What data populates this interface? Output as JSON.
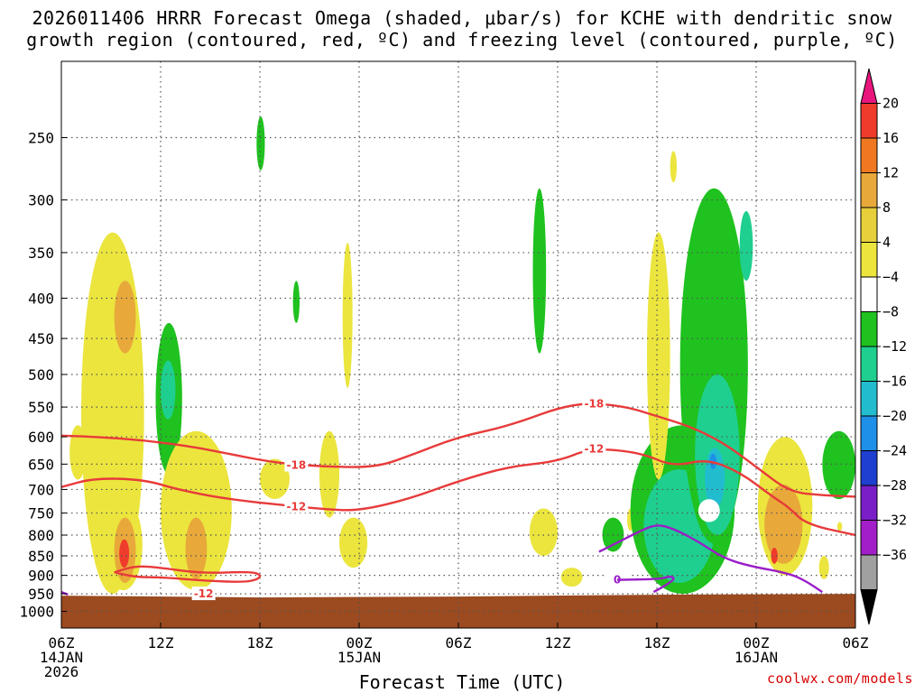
{
  "title": {
    "line1": "2026011406 HRRR Forecast Omega (shaded, μbar/s) for KCHE with dendritic snow",
    "line2": "growth region (contoured, red, ºC) and freezing level (contoured, purple, ºC)"
  },
  "xlabel": "Forecast Time (UTC)",
  "credit": "coolwx.com/models",
  "chart_data": {
    "type": "heatmap",
    "title": "2026011406 HRRR Forecast Omega (shaded, μbar/s) for KCHE with dendritic snow growth region (contoured, red, ºC) and freezing level (contoured, purple, ºC)",
    "xlabel": "Forecast Time (UTC)",
    "ylabel": "",
    "x_range_hours": [
      0,
      48
    ],
    "x_ticks": [
      {
        "hour": 0,
        "l1": "06Z",
        "l2": "14JAN",
        "l3": "2026"
      },
      {
        "hour": 6,
        "l1": "12Z",
        "l2": "",
        "l3": ""
      },
      {
        "hour": 12,
        "l1": "18Z",
        "l2": "",
        "l3": ""
      },
      {
        "hour": 18,
        "l1": "00Z",
        "l2": "15JAN",
        "l3": ""
      },
      {
        "hour": 24,
        "l1": "06Z",
        "l2": "",
        "l3": ""
      },
      {
        "hour": 30,
        "l1": "12Z",
        "l2": "",
        "l3": ""
      },
      {
        "hour": 36,
        "l1": "18Z",
        "l2": "",
        "l3": ""
      },
      {
        "hour": 42,
        "l1": "00Z",
        "l2": "16JAN",
        "l3": ""
      },
      {
        "hour": 48,
        "l1": "06Z",
        "l2": "",
        "l3": ""
      }
    ],
    "y_axis": "pressure (hPa), log scale, inverted",
    "y_range": [
      1050,
      200
    ],
    "y_ticks": [
      250,
      300,
      350,
      400,
      450,
      500,
      550,
      600,
      650,
      700,
      750,
      800,
      850,
      900,
      950,
      1000
    ],
    "grid": true,
    "colorbar": {
      "units": "μbar/s",
      "levels": [
        20,
        16,
        12,
        8,
        4,
        -4,
        -8,
        -12,
        -16,
        -20,
        -24,
        -28,
        -32,
        -36
      ],
      "colors": [
        "#e8157d",
        "#ef3b2c",
        "#f07820",
        "#e8a93a",
        "#e6cf3a",
        "#ebe53e",
        "#ffffff",
        "#1fc21f",
        "#1fcf8f",
        "#22bccf",
        "#1e90e8",
        "#1e3fd0",
        "#7a1ec8",
        "#a21ec8",
        "#a0a0a0",
        "#000000"
      ],
      "placement": "right"
    },
    "terrain_color": "#9c4a20",
    "terrain_pressure_hpa": 955,
    "omega_regions": [
      {
        "color": "#ebe53e",
        "x": [
          1.2,
          5.0
        ],
        "p": [
          330,
          950
        ]
      },
      {
        "color": "#e8a93a",
        "x": [
          3.2,
          4.5
        ],
        "p": [
          380,
          470
        ]
      },
      {
        "color": "#ebe53e",
        "x": [
          0.5,
          1.5
        ],
        "p": [
          580,
          680
        ]
      },
      {
        "color": "#ebe53e",
        "x": [
          2.6,
          4.9
        ],
        "p": [
          720,
          940
        ]
      },
      {
        "color": "#e8a93a",
        "x": [
          3.2,
          4.5
        ],
        "p": [
          760,
          920
        ]
      },
      {
        "color": "#ef3b2c",
        "x": [
          3.5,
          4.1
        ],
        "p": [
          810,
          880
        ]
      },
      {
        "color": "#1fc21f",
        "x": [
          5.7,
          7.3
        ],
        "p": [
          430,
          670
        ]
      },
      {
        "color": "#1fcf8f",
        "x": [
          6.0,
          6.9
        ],
        "p": [
          480,
          570
        ]
      },
      {
        "color": "#ebe53e",
        "x": [
          6.0,
          10.3
        ],
        "p": [
          590,
          940
        ]
      },
      {
        "color": "#e8a93a",
        "x": [
          7.5,
          8.8
        ],
        "p": [
          760,
          910
        ]
      },
      {
        "color": "#1fc21f",
        "x": [
          11.8,
          12.3
        ],
        "p": [
          235,
          275
        ]
      },
      {
        "color": "#ebe53e",
        "x": [
          12.0,
          13.8
        ],
        "p": [
          640,
          720
        ]
      },
      {
        "color": "#1fc21f",
        "x": [
          14.0,
          14.4
        ],
        "p": [
          380,
          430
        ]
      },
      {
        "color": "#ebe53e",
        "x": [
          15.6,
          16.8
        ],
        "p": [
          590,
          760
        ]
      },
      {
        "color": "#ebe53e",
        "x": [
          17.0,
          17.6
        ],
        "p": [
          340,
          520
        ]
      },
      {
        "color": "#ebe53e",
        "x": [
          16.8,
          18.5
        ],
        "p": [
          760,
          880
        ]
      },
      {
        "color": "#1fc21f",
        "x": [
          28.5,
          29.3
        ],
        "p": [
          290,
          470
        ]
      },
      {
        "color": "#ebe53e",
        "x": [
          28.3,
          30.0
        ],
        "p": [
          740,
          850
        ]
      },
      {
        "color": "#ebe53e",
        "x": [
          30.2,
          31.5
        ],
        "p": [
          880,
          930
        ]
      },
      {
        "color": "#1fc21f",
        "x": [
          32.7,
          34.0
        ],
        "p": [
          760,
          840
        ]
      },
      {
        "color": "#ebe53e",
        "x": [
          34.2,
          34.6
        ],
        "p": [
          740,
          790
        ]
      },
      {
        "color": "#1fc21f",
        "x": [
          34.4,
          40.7
        ],
        "p": [
          580,
          950
        ]
      },
      {
        "color": "#1fcf8f",
        "x": [
          35.2,
          39.5
        ],
        "p": [
          660,
          920
        ]
      },
      {
        "color": "#ebe53e",
        "x": [
          35.4,
          36.8
        ],
        "p": [
          330,
          680
        ]
      },
      {
        "color": "#ebe53e",
        "x": [
          36.8,
          37.2
        ],
        "p": [
          260,
          285
        ]
      },
      {
        "color": "#1fc21f",
        "x": [
          37.4,
          41.5
        ],
        "p": [
          290,
          820
        ]
      },
      {
        "color": "#1fcf8f",
        "x": [
          38.3,
          41.0
        ],
        "p": [
          500,
          800
        ]
      },
      {
        "color": "#22bccf",
        "x": [
          38.9,
          40.1
        ],
        "p": [
          620,
          740
        ]
      },
      {
        "color": "#1e90e8",
        "x": [
          39.2,
          39.6
        ],
        "p": [
          630,
          660
        ]
      },
      {
        "color": "#ffffff",
        "x": [
          38.5,
          39.8
        ],
        "p": [
          720,
          770
        ]
      },
      {
        "color": "#1fcf8f",
        "x": [
          41.0,
          41.8
        ],
        "p": [
          310,
          380
        ]
      },
      {
        "color": "#ebe53e",
        "x": [
          42.1,
          45.4
        ],
        "p": [
          600,
          900
        ]
      },
      {
        "color": "#e8a93a",
        "x": [
          42.5,
          44.8
        ],
        "p": [
          690,
          870
        ]
      },
      {
        "color": "#ef3b2c",
        "x": [
          42.9,
          43.3
        ],
        "p": [
          830,
          870
        ]
      },
      {
        "color": "#ebe53e",
        "x": [
          45.8,
          46.4
        ],
        "p": [
          850,
          910
        ]
      },
      {
        "color": "#1fc21f",
        "x": [
          46.0,
          48.0
        ],
        "p": [
          590,
          720
        ]
      },
      {
        "color": "#ebe53e",
        "x": [
          46.9,
          47.2
        ],
        "p": [
          770,
          790
        ]
      }
    ],
    "contours": [
      {
        "name": "-18",
        "color": "#e83a3a",
        "points": [
          [
            0,
            598
          ],
          [
            2,
            600
          ],
          [
            5,
            606
          ],
          [
            8,
            618
          ],
          [
            10,
            630
          ],
          [
            13,
            648
          ],
          [
            16,
            655
          ],
          [
            19,
            656
          ],
          [
            21,
            635
          ],
          [
            24,
            600
          ],
          [
            27,
            582
          ],
          [
            31,
            542
          ],
          [
            34,
            548
          ],
          [
            36,
            565
          ],
          [
            38,
            582
          ],
          [
            40,
            610
          ],
          [
            42,
            655
          ],
          [
            44,
            705
          ],
          [
            46,
            712
          ],
          [
            48,
            715
          ]
        ],
        "labels": [
          [
            14.2,
            652,
            "-18"
          ],
          [
            32.2,
            545,
            "-18"
          ]
        ]
      },
      {
        "name": "-12",
        "color": "#e83a3a",
        "points": [
          [
            0,
            695
          ],
          [
            2,
            677
          ],
          [
            5,
            680
          ],
          [
            7,
            700
          ],
          [
            10,
            720
          ],
          [
            14,
            735
          ],
          [
            16,
            742
          ],
          [
            18,
            745
          ],
          [
            21,
            720
          ],
          [
            24,
            683
          ],
          [
            27,
            655
          ],
          [
            30,
            645
          ],
          [
            32,
            620
          ],
          [
            35,
            628
          ],
          [
            37,
            655
          ],
          [
            39,
            640
          ],
          [
            41,
            665
          ],
          [
            43,
            715
          ],
          [
            44,
            738
          ],
          [
            45,
            775
          ],
          [
            48,
            800
          ]
        ],
        "labels": [
          [
            14.2,
            736,
            "-12"
          ],
          [
            32.2,
            622,
            "-12"
          ]
        ]
      },
      {
        "name": "-12 lower",
        "color": "#e83a3a",
        "points": [
          [
            3.2,
            892
          ],
          [
            4.5,
            875
          ],
          [
            6,
            880
          ],
          [
            8.5,
            895
          ],
          [
            11.5,
            890
          ],
          [
            12.1,
            900
          ],
          [
            11.8,
            912
          ],
          [
            11,
            918
          ],
          [
            9,
            915
          ],
          [
            6,
            905
          ],
          [
            4.5,
            905
          ],
          [
            3.2,
            892
          ]
        ],
        "labels": [
          [
            8.6,
            950,
            "-12"
          ]
        ]
      },
      {
        "name": "0",
        "color": "#9b1ec8",
        "points": [
          [
            32.5,
            840
          ],
          [
            33.5,
            820
          ],
          [
            35,
            790
          ],
          [
            36,
            775
          ],
          [
            37,
            785
          ],
          [
            38.5,
            815
          ],
          [
            40,
            855
          ],
          [
            41.5,
            875
          ],
          [
            44,
            895
          ],
          [
            45,
            915
          ],
          [
            46,
            945
          ]
        ],
        "labels": [
          [
            33.6,
            912,
            "0"
          ]
        ]
      },
      {
        "name": "0 lower",
        "color": "#9b1ec8",
        "points": [
          [
            33.6,
            912
          ],
          [
            36.2,
            910
          ],
          [
            36.8,
            902
          ],
          [
            37.1,
            908
          ],
          [
            36.6,
            925
          ],
          [
            35.8,
            945
          ]
        ],
        "labels": []
      },
      {
        "name": "0 left",
        "color": "#9b1ec8",
        "points": [
          [
            0,
            945
          ],
          [
            0.4,
            952
          ]
        ],
        "labels": []
      }
    ]
  }
}
